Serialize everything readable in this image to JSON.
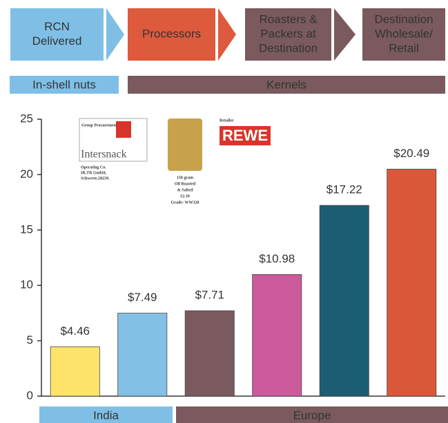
{
  "flow": [
    {
      "lines": [
        "RCN",
        "Delivered"
      ],
      "color": "#7fbfe6",
      "text_color": "#333333"
    },
    {
      "lines": [
        "Processors"
      ],
      "color": "#dd5a3c",
      "text_color": "#ffffff"
    },
    {
      "lines": [
        "Roasters &",
        "Packers at",
        "Destination"
      ],
      "color": "#7a5a5e",
      "text_color": "#ffffff"
    },
    {
      "lines": [
        "Destination",
        "Wholesale/",
        "Retail"
      ],
      "color": "#7a5a5e",
      "text_color": "#ffffff"
    }
  ],
  "stages": [
    {
      "label": "In-shell nuts",
      "color": "#7fbfe6",
      "text_color": "#333333"
    },
    {
      "label": "Kernels",
      "color": "#7a5a5e",
      "text_color": "#ffffff"
    }
  ],
  "regions": [
    {
      "label": "India",
      "color": "#7fbfe6"
    },
    {
      "label": "Europe",
      "color": "#7a5a5e"
    }
  ],
  "chart_data": {
    "type": "bar",
    "categories": [
      null,
      null,
      null,
      null,
      null,
      null
    ],
    "values": [
      4.46,
      7.49,
      7.71,
      10.98,
      17.22,
      20.49
    ],
    "value_labels": [
      "$4.46",
      "$7.49",
      "$7.71",
      "$10.98",
      "$17.22",
      "$20.49"
    ],
    "colors": [
      "#fde36a",
      "#82c0e6",
      "#7a5a5e",
      "#cc5a9c",
      "#1b5e73",
      "#d9583a"
    ],
    "ylim": [
      0,
      25
    ],
    "yticks": [
      0,
      5,
      10,
      15,
      20,
      25
    ],
    "grid": false,
    "annotations": [
      "Group Procurement",
      "Intersnack",
      "Operating Co.",
      "IR.TR GmbH,",
      "Schwerte,58239.",
      "150 gram",
      "Oil Roasted",
      "& Salted",
      "€2.39",
      "Grade: WW320",
      "Retailer",
      "REWE"
    ]
  }
}
